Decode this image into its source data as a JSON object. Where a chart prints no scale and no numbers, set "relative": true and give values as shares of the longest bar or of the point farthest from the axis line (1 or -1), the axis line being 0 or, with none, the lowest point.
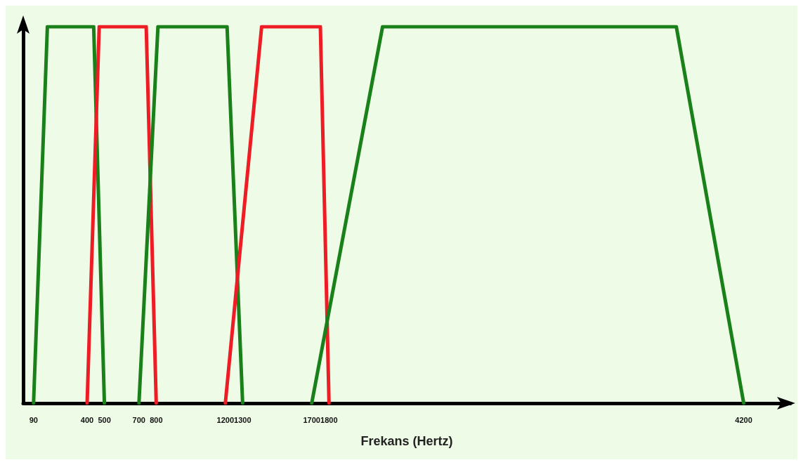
{
  "chart_data": {
    "type": "line",
    "xlabel": "Frekans (Hertz)",
    "relative": true,
    "xlim": [
      30,
      4470
    ],
    "xticks": [
      90,
      400,
      500,
      700,
      800,
      1200,
      1300,
      1700,
      1800,
      4200
    ],
    "marker": "none",
    "line_style": "solid",
    "series": [
      {
        "color": "#1a801a",
        "x": [
          90,
          170,
          438,
          500
        ],
        "values": [
          0,
          1,
          1,
          0
        ]
      },
      {
        "color": "#ee1c24",
        "x": [
          400,
          470,
          742,
          800
        ],
        "values": [
          0,
          1,
          1,
          0
        ]
      },
      {
        "color": "#1a801a",
        "x": [
          700,
          810,
          1210,
          1300
        ],
        "values": [
          0,
          1,
          1,
          0
        ]
      },
      {
        "color": "#ee1c24",
        "x": [
          1200,
          1410,
          1750,
          1800
        ],
        "values": [
          0,
          1,
          1,
          0
        ]
      },
      {
        "color": "#1a801a",
        "x": [
          1700,
          2110,
          3810,
          4200
        ],
        "values": [
          0,
          1,
          1,
          0
        ]
      }
    ]
  }
}
